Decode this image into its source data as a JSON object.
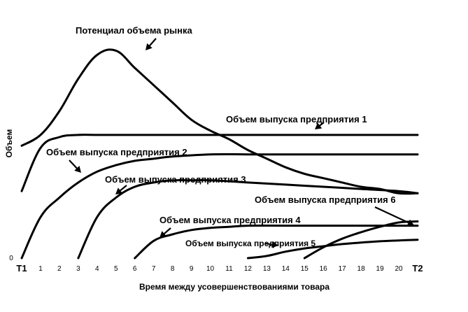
{
  "chart_data": {
    "type": "line",
    "xlabel": "Время между усовершенствованиями товара",
    "ylabel": "Объем",
    "x_tick_labels": [
      "T1",
      "1",
      "2",
      "3",
      "4",
      "5",
      "6",
      "7",
      "8",
      "9",
      "10",
      "11",
      "12",
      "13",
      "14",
      "15",
      "16",
      "17",
      "18",
      "19",
      "20",
      "T2"
    ],
    "y_tick_labels": [
      "0"
    ],
    "xlim": [
      0,
      21
    ],
    "ylim": [
      0,
      10
    ],
    "grid": false,
    "legend": "none",
    "series": [
      {
        "name": "Потенциал объема рынка",
        "x": [
          0,
          1,
          2,
          3,
          4,
          5,
          6,
          7,
          8,
          9,
          10,
          11,
          12,
          13,
          14,
          15,
          16,
          17,
          18,
          19,
          20,
          21
        ],
        "y": [
          5.2,
          5.7,
          6.8,
          8.3,
          9.4,
          9.6,
          8.8,
          8.0,
          7.2,
          6.4,
          5.9,
          5.5,
          5.0,
          4.6,
          4.2,
          3.9,
          3.7,
          3.5,
          3.3,
          3.2,
          3.0,
          3.0
        ]
      },
      {
        "name": "Объем выпуска предприятия 1",
        "x": [
          0,
          1,
          2,
          3,
          4,
          5,
          6,
          8,
          10,
          12,
          14,
          16,
          18,
          20,
          21
        ],
        "y": [
          3.1,
          5.1,
          5.6,
          5.7,
          5.7,
          5.7,
          5.7,
          5.7,
          5.7,
          5.7,
          5.7,
          5.7,
          5.7,
          5.7,
          5.7
        ]
      },
      {
        "name": "Объем выпуска предприятия 2",
        "x": [
          0,
          1,
          2,
          3,
          4,
          5,
          6,
          7,
          8,
          10,
          12,
          14,
          16,
          18,
          20,
          21
        ],
        "y": [
          0,
          1.9,
          2.8,
          3.5,
          4.0,
          4.3,
          4.5,
          4.6,
          4.7,
          4.8,
          4.8,
          4.8,
          4.8,
          4.8,
          4.8,
          4.8
        ]
      },
      {
        "name": "Объем выпуска предприятия 3",
        "x": [
          3,
          4,
          5,
          6,
          7,
          8,
          9,
          10,
          12,
          14,
          16,
          18,
          20,
          21
        ],
        "y": [
          0,
          1.9,
          2.8,
          3.3,
          3.5,
          3.6,
          3.6,
          3.6,
          3.5,
          3.4,
          3.3,
          3.2,
          3.1,
          3.0
        ]
      },
      {
        "name": "Объем выпуска предприятия 4",
        "x": [
          6,
          7,
          8,
          9,
          10,
          11,
          12,
          14,
          16,
          18,
          20,
          21
        ],
        "y": [
          0,
          0.8,
          1.1,
          1.3,
          1.4,
          1.45,
          1.5,
          1.5,
          1.5,
          1.5,
          1.5,
          1.5
        ]
      },
      {
        "name": "Объем выпуска предприятия 5",
        "x": [
          12,
          13,
          14,
          15,
          16,
          17,
          18,
          19,
          20,
          21
        ],
        "y": [
          0,
          0.1,
          0.3,
          0.45,
          0.55,
          0.65,
          0.72,
          0.78,
          0.82,
          0.85
        ]
      },
      {
        "name": "Объем выпуска предприятия 6",
        "x": [
          15,
          16,
          17,
          18,
          19,
          20,
          21
        ],
        "y": [
          0,
          0.5,
          0.9,
          1.2,
          1.45,
          1.65,
          1.7
        ]
      }
    ]
  }
}
